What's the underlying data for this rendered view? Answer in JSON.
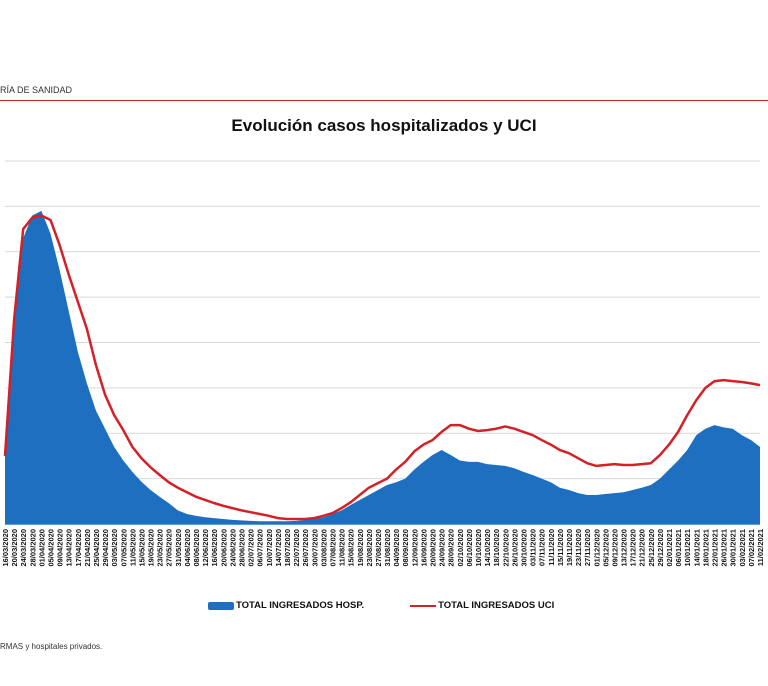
{
  "header": {
    "text": "RÍA DE SANIDAD"
  },
  "footnote": "RMAS y hospitales privados.",
  "colors": {
    "hosp": "#1f6fc0",
    "uci": "#d42027",
    "rule": "#c0282d"
  },
  "chart_data": {
    "type": "area+line",
    "title": "Evolución casos hospitalizados y UCI",
    "xlabel": "",
    "ylabel": "",
    "grid": true,
    "legend": "bottom",
    "y_units": "gridline intervals (no y-axis labels printed)",
    "ylim": [
      0,
      8
    ],
    "categories": [
      "16/03/2020",
      "20/03/2020",
      "24/03/2020",
      "28/03/2020",
      "01/04/2020",
      "05/04/2020",
      "09/04/2020",
      "13/04/2020",
      "17/04/2020",
      "21/04/2020",
      "25/04/2020",
      "29/04/2020",
      "03/05/2020",
      "07/05/2020",
      "11/05/2020",
      "15/05/2020",
      "19/05/2020",
      "23/05/2020",
      "27/05/2020",
      "31/05/2020",
      "04/06/2020",
      "08/06/2020",
      "12/06/2020",
      "16/06/2020",
      "20/06/2020",
      "24/06/2020",
      "28/06/2020",
      "02/07/2020",
      "06/07/2020",
      "10/07/2020",
      "14/07/2020",
      "18/07/2020",
      "22/07/2020",
      "26/07/2020",
      "30/07/2020",
      "03/08/2020",
      "07/08/2020",
      "11/08/2020",
      "15/08/2020",
      "19/08/2020",
      "23/08/2020",
      "27/08/2020",
      "31/08/2020",
      "04/09/2020",
      "08/09/2020",
      "12/09/2020",
      "16/09/2020",
      "20/09/2020",
      "24/09/2020",
      "28/09/2020",
      "02/10/2020",
      "06/10/2020",
      "10/10/2020",
      "14/10/2020",
      "18/10/2020",
      "22/10/2020",
      "26/10/2020",
      "30/10/2020",
      "03/11/2020",
      "07/11/2020",
      "11/11/2020",
      "15/11/2020",
      "19/11/2020",
      "23/11/2020",
      "27/11/2020",
      "01/12/2020",
      "05/12/2020",
      "09/12/2020",
      "13/12/2020",
      "17/12/2020",
      "21/12/2020",
      "25/12/2020",
      "29/12/2020",
      "02/01/2021",
      "06/01/2021",
      "10/01/2021",
      "14/01/2021",
      "18/01/2021",
      "22/01/2021",
      "26/01/2021",
      "30/01/2021",
      "03/02/2021",
      "07/02/2021",
      "11/02/2021"
    ],
    "series": [
      {
        "name": "TOTAL INGRESADOS HOSP.",
        "type": "area",
        "values": [
          1.6,
          4.3,
          6.3,
          6.8,
          6.9,
          6.4,
          5.6,
          4.7,
          3.8,
          3.1,
          2.5,
          2.1,
          1.7,
          1.4,
          1.15,
          0.93,
          0.75,
          0.6,
          0.46,
          0.3,
          0.22,
          0.18,
          0.15,
          0.13,
          0.11,
          0.09,
          0.08,
          0.07,
          0.06,
          0.06,
          0.06,
          0.06,
          0.07,
          0.09,
          0.11,
          0.15,
          0.22,
          0.3,
          0.42,
          0.53,
          0.64,
          0.75,
          0.86,
          0.92,
          1.0,
          1.2,
          1.37,
          1.52,
          1.63,
          1.52,
          1.4,
          1.37,
          1.37,
          1.32,
          1.3,
          1.28,
          1.23,
          1.15,
          1.08,
          1.0,
          0.92,
          0.8,
          0.75,
          0.68,
          0.64,
          0.64,
          0.66,
          0.68,
          0.7,
          0.75,
          0.8,
          0.86,
          1.0,
          1.2,
          1.4,
          1.63,
          1.96,
          2.1,
          2.18,
          2.13,
          2.1,
          1.96,
          1.85,
          1.7
        ]
      },
      {
        "name": "TOTAL INGRESADOS UCI",
        "type": "line",
        "values": [
          1.5,
          4.5,
          6.5,
          6.75,
          6.8,
          6.7,
          6.15,
          5.5,
          4.9,
          4.3,
          3.5,
          2.85,
          2.4,
          2.07,
          1.7,
          1.45,
          1.25,
          1.08,
          0.92,
          0.8,
          0.7,
          0.6,
          0.53,
          0.46,
          0.4,
          0.35,
          0.3,
          0.26,
          0.22,
          0.18,
          0.13,
          0.11,
          0.11,
          0.11,
          0.13,
          0.18,
          0.24,
          0.35,
          0.48,
          0.64,
          0.8,
          0.9,
          1.0,
          1.2,
          1.37,
          1.6,
          1.75,
          1.85,
          2.03,
          2.18,
          2.18,
          2.1,
          2.05,
          2.07,
          2.1,
          2.15,
          2.1,
          2.03,
          1.96,
          1.85,
          1.75,
          1.63,
          1.56,
          1.45,
          1.34,
          1.28,
          1.3,
          1.32,
          1.3,
          1.3,
          1.32,
          1.34,
          1.52,
          1.75,
          2.03,
          2.4,
          2.73,
          3.0,
          3.15,
          3.17,
          3.15,
          3.13,
          3.1,
          3.06
        ]
      }
    ]
  }
}
